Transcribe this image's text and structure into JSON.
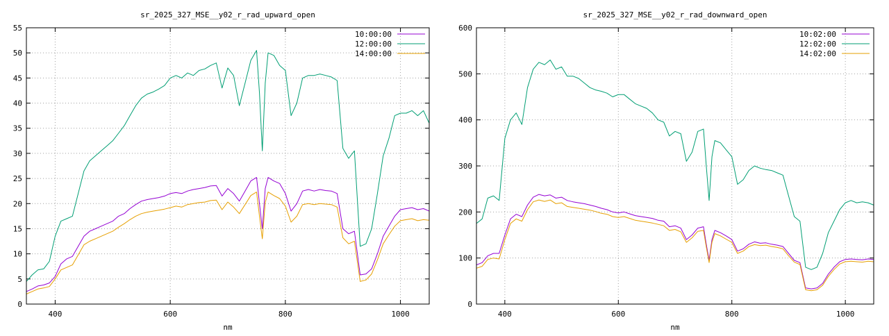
{
  "chart_data": [
    {
      "type": "line",
      "title": "sr_2025_327_MSE__y02_r_rad_upward_open",
      "xlabel": "nm",
      "ylabel": "",
      "xlim": [
        350,
        1050
      ],
      "ylim": [
        0,
        55
      ],
      "xticks": [
        400,
        600,
        800,
        1000
      ],
      "yticks": [
        0,
        5,
        10,
        15,
        20,
        25,
        30,
        35,
        40,
        45,
        50,
        55
      ],
      "grid": true,
      "legend_position": "top-right",
      "series": [
        {
          "name": "10:00:00",
          "color": "#9400d3",
          "x": [
            350,
            360,
            370,
            380,
            390,
            400,
            410,
            420,
            430,
            440,
            450,
            460,
            470,
            480,
            490,
            500,
            510,
            520,
            530,
            540,
            550,
            560,
            570,
            580,
            590,
            600,
            610,
            620,
            630,
            640,
            650,
            660,
            670,
            680,
            690,
            700,
            710,
            720,
            730,
            740,
            750,
            755,
            760,
            765,
            770,
            780,
            790,
            800,
            810,
            820,
            830,
            840,
            850,
            860,
            870,
            880,
            890,
            900,
            910,
            920,
            930,
            940,
            950,
            960,
            970,
            980,
            990,
            1000,
            1010,
            1020,
            1030,
            1040,
            1050
          ],
          "y": [
            2.5,
            3.0,
            3.6,
            3.8,
            4.2,
            5.5,
            8.0,
            9.0,
            9.5,
            11.5,
            13.5,
            14.5,
            15.0,
            15.5,
            16.0,
            16.5,
            17.5,
            18.0,
            19.0,
            19.8,
            20.5,
            20.8,
            21.0,
            21.2,
            21.5,
            22.0,
            22.2,
            22.0,
            22.5,
            22.8,
            23.0,
            23.2,
            23.5,
            23.6,
            21.5,
            23.0,
            22.0,
            20.5,
            22.5,
            24.5,
            25.2,
            20.0,
            15.0,
            23.0,
            25.2,
            24.5,
            24.0,
            22.0,
            18.5,
            20.0,
            22.5,
            22.8,
            22.5,
            22.8,
            22.6,
            22.5,
            22.0,
            15.0,
            14.0,
            14.5,
            5.8,
            6.0,
            7.0,
            10.0,
            13.5,
            15.5,
            17.5,
            18.8,
            19.0,
            19.2,
            18.8,
            19.0,
            18.5
          ]
        },
        {
          "name": "12:00:00",
          "color": "#009e73",
          "x": [
            350,
            360,
            370,
            380,
            390,
            400,
            410,
            420,
            430,
            440,
            450,
            460,
            470,
            480,
            490,
            500,
            510,
            520,
            530,
            540,
            550,
            560,
            570,
            580,
            590,
            600,
            610,
            620,
            630,
            640,
            650,
            660,
            670,
            680,
            690,
            700,
            710,
            720,
            730,
            740,
            750,
            755,
            760,
            765,
            770,
            780,
            790,
            800,
            810,
            820,
            830,
            840,
            850,
            860,
            870,
            880,
            890,
            900,
            910,
            920,
            930,
            940,
            950,
            960,
            970,
            980,
            990,
            1000,
            1010,
            1020,
            1030,
            1040,
            1050
          ],
          "y": [
            4.5,
            5.8,
            6.8,
            7.0,
            8.5,
            13.5,
            16.5,
            17.0,
            17.5,
            22.0,
            26.5,
            28.5,
            29.5,
            30.5,
            31.5,
            32.5,
            34.0,
            35.5,
            37.5,
            39.5,
            41.0,
            41.8,
            42.2,
            42.8,
            43.5,
            45.0,
            45.5,
            45.0,
            46.0,
            45.5,
            46.5,
            46.8,
            47.5,
            48.0,
            43.0,
            47.0,
            45.5,
            39.5,
            44.0,
            48.5,
            50.5,
            42.0,
            30.5,
            44.0,
            50.0,
            49.5,
            47.5,
            46.5,
            37.5,
            40.0,
            45.0,
            45.5,
            45.5,
            45.8,
            45.5,
            45.2,
            44.5,
            31.0,
            29.0,
            30.5,
            11.5,
            12.0,
            15.0,
            22.0,
            29.5,
            33.0,
            37.5,
            38.0,
            38.0,
            38.5,
            37.5,
            38.5,
            36.0
          ]
        },
        {
          "name": "14:00:00",
          "color": "#e69f00",
          "x": [
            350,
            360,
            370,
            380,
            390,
            400,
            410,
            420,
            430,
            440,
            450,
            460,
            470,
            480,
            490,
            500,
            510,
            520,
            530,
            540,
            550,
            560,
            570,
            580,
            590,
            600,
            610,
            620,
            630,
            640,
            650,
            660,
            670,
            680,
            690,
            700,
            710,
            720,
            730,
            740,
            750,
            755,
            760,
            765,
            770,
            780,
            790,
            800,
            810,
            820,
            830,
            840,
            850,
            860,
            870,
            880,
            890,
            900,
            910,
            920,
            930,
            940,
            950,
            960,
            970,
            980,
            990,
            1000,
            1010,
            1020,
            1030,
            1040,
            1050
          ],
          "y": [
            2.0,
            2.5,
            3.0,
            3.2,
            3.5,
            5.0,
            6.8,
            7.3,
            7.8,
            9.8,
            11.8,
            12.5,
            13.0,
            13.5,
            14.0,
            14.5,
            15.3,
            16.0,
            16.8,
            17.5,
            18.0,
            18.3,
            18.5,
            18.7,
            18.9,
            19.2,
            19.5,
            19.3,
            19.8,
            20.0,
            20.2,
            20.3,
            20.6,
            20.7,
            18.8,
            20.3,
            19.3,
            18.0,
            19.8,
            21.6,
            22.3,
            17.5,
            13.0,
            20.2,
            22.3,
            21.6,
            21.0,
            19.5,
            16.3,
            17.5,
            19.8,
            20.0,
            19.8,
            20.0,
            19.9,
            19.8,
            19.3,
            13.2,
            12.0,
            12.5,
            4.5,
            4.8,
            6.0,
            8.8,
            12.0,
            13.8,
            15.5,
            16.6,
            16.8,
            17.0,
            16.6,
            16.8,
            16.7
          ]
        }
      ]
    },
    {
      "type": "line",
      "title": "sr_2025_327_MSE__y02_r_rad_downward_open",
      "xlabel": "nm",
      "ylabel": "",
      "xlim": [
        350,
        1050
      ],
      "ylim": [
        0,
        600
      ],
      "xticks": [
        400,
        600,
        800,
        1000
      ],
      "yticks": [
        0,
        100,
        200,
        300,
        400,
        500,
        600
      ],
      "grid": true,
      "legend_position": "top-right",
      "series": [
        {
          "name": "10:02:00",
          "color": "#9400d3",
          "x": [
            350,
            360,
            370,
            380,
            390,
            400,
            410,
            420,
            430,
            440,
            450,
            460,
            470,
            480,
            490,
            500,
            510,
            520,
            530,
            540,
            550,
            560,
            570,
            580,
            590,
            600,
            610,
            620,
            630,
            640,
            650,
            660,
            670,
            680,
            690,
            700,
            710,
            720,
            730,
            740,
            750,
            755,
            760,
            765,
            770,
            780,
            790,
            800,
            810,
            820,
            830,
            840,
            850,
            860,
            870,
            880,
            890,
            900,
            910,
            920,
            930,
            940,
            950,
            960,
            970,
            980,
            990,
            1000,
            1010,
            1020,
            1030,
            1040,
            1050
          ],
          "y": [
            85,
            90,
            105,
            110,
            110,
            150,
            185,
            195,
            190,
            215,
            232,
            238,
            235,
            237,
            230,
            232,
            225,
            222,
            220,
            218,
            215,
            212,
            208,
            205,
            200,
            198,
            200,
            196,
            192,
            190,
            188,
            186,
            182,
            180,
            168,
            170,
            165,
            140,
            150,
            165,
            168,
            130,
            95,
            140,
            160,
            155,
            148,
            140,
            115,
            120,
            130,
            135,
            132,
            133,
            130,
            128,
            125,
            110,
            95,
            90,
            35,
            33,
            35,
            45,
            65,
            80,
            92,
            97,
            98,
            97,
            96,
            98,
            97
          ]
        },
        {
          "name": "12:02:00",
          "color": "#009e73",
          "x": [
            350,
            360,
            370,
            380,
            390,
            400,
            410,
            420,
            430,
            440,
            450,
            460,
            470,
            480,
            490,
            500,
            510,
            520,
            530,
            540,
            550,
            560,
            570,
            580,
            590,
            600,
            610,
            620,
            630,
            640,
            650,
            660,
            670,
            680,
            690,
            700,
            710,
            720,
            730,
            740,
            750,
            755,
            760,
            765,
            770,
            780,
            790,
            800,
            810,
            820,
            830,
            840,
            850,
            860,
            870,
            880,
            890,
            900,
            910,
            920,
            930,
            940,
            950,
            960,
            970,
            980,
            990,
            1000,
            1010,
            1020,
            1030,
            1040,
            1050
          ],
          "y": [
            175,
            185,
            230,
            235,
            225,
            360,
            400,
            415,
            390,
            470,
            510,
            525,
            520,
            530,
            510,
            515,
            495,
            495,
            490,
            480,
            470,
            465,
            462,
            458,
            450,
            455,
            455,
            445,
            435,
            430,
            425,
            415,
            400,
            395,
            365,
            375,
            370,
            310,
            330,
            375,
            380,
            300,
            225,
            320,
            355,
            350,
            335,
            320,
            260,
            270,
            290,
            300,
            295,
            292,
            290,
            285,
            280,
            235,
            190,
            180,
            80,
            75,
            80,
            110,
            155,
            180,
            205,
            220,
            225,
            220,
            222,
            220,
            215
          ]
        },
        {
          "name": "14:02:00",
          "color": "#e69f00",
          "x": [
            350,
            360,
            370,
            380,
            390,
            400,
            410,
            420,
            430,
            440,
            450,
            460,
            470,
            480,
            490,
            500,
            510,
            520,
            530,
            540,
            550,
            560,
            570,
            580,
            590,
            600,
            610,
            620,
            630,
            640,
            650,
            660,
            670,
            680,
            690,
            700,
            710,
            720,
            730,
            740,
            750,
            755,
            760,
            765,
            770,
            780,
            790,
            800,
            810,
            820,
            830,
            840,
            850,
            860,
            870,
            880,
            890,
            900,
            910,
            920,
            930,
            940,
            950,
            960,
            970,
            980,
            990,
            1000,
            1010,
            1020,
            1030,
            1040,
            1050
          ],
          "y": [
            78,
            82,
            97,
            100,
            98,
            140,
            175,
            185,
            180,
            205,
            222,
            226,
            223,
            226,
            218,
            220,
            212,
            210,
            208,
            206,
            204,
            201,
            197,
            195,
            190,
            188,
            190,
            186,
            182,
            180,
            178,
            176,
            173,
            170,
            160,
            162,
            157,
            134,
            144,
            158,
            160,
            124,
            90,
            134,
            153,
            148,
            141,
            134,
            110,
            115,
            125,
            129,
            127,
            128,
            125,
            123,
            120,
            105,
            91,
            86,
            31,
            29,
            31,
            41,
            60,
            75,
            87,
            92,
            93,
            92,
            91,
            93,
            92
          ]
        }
      ]
    }
  ]
}
